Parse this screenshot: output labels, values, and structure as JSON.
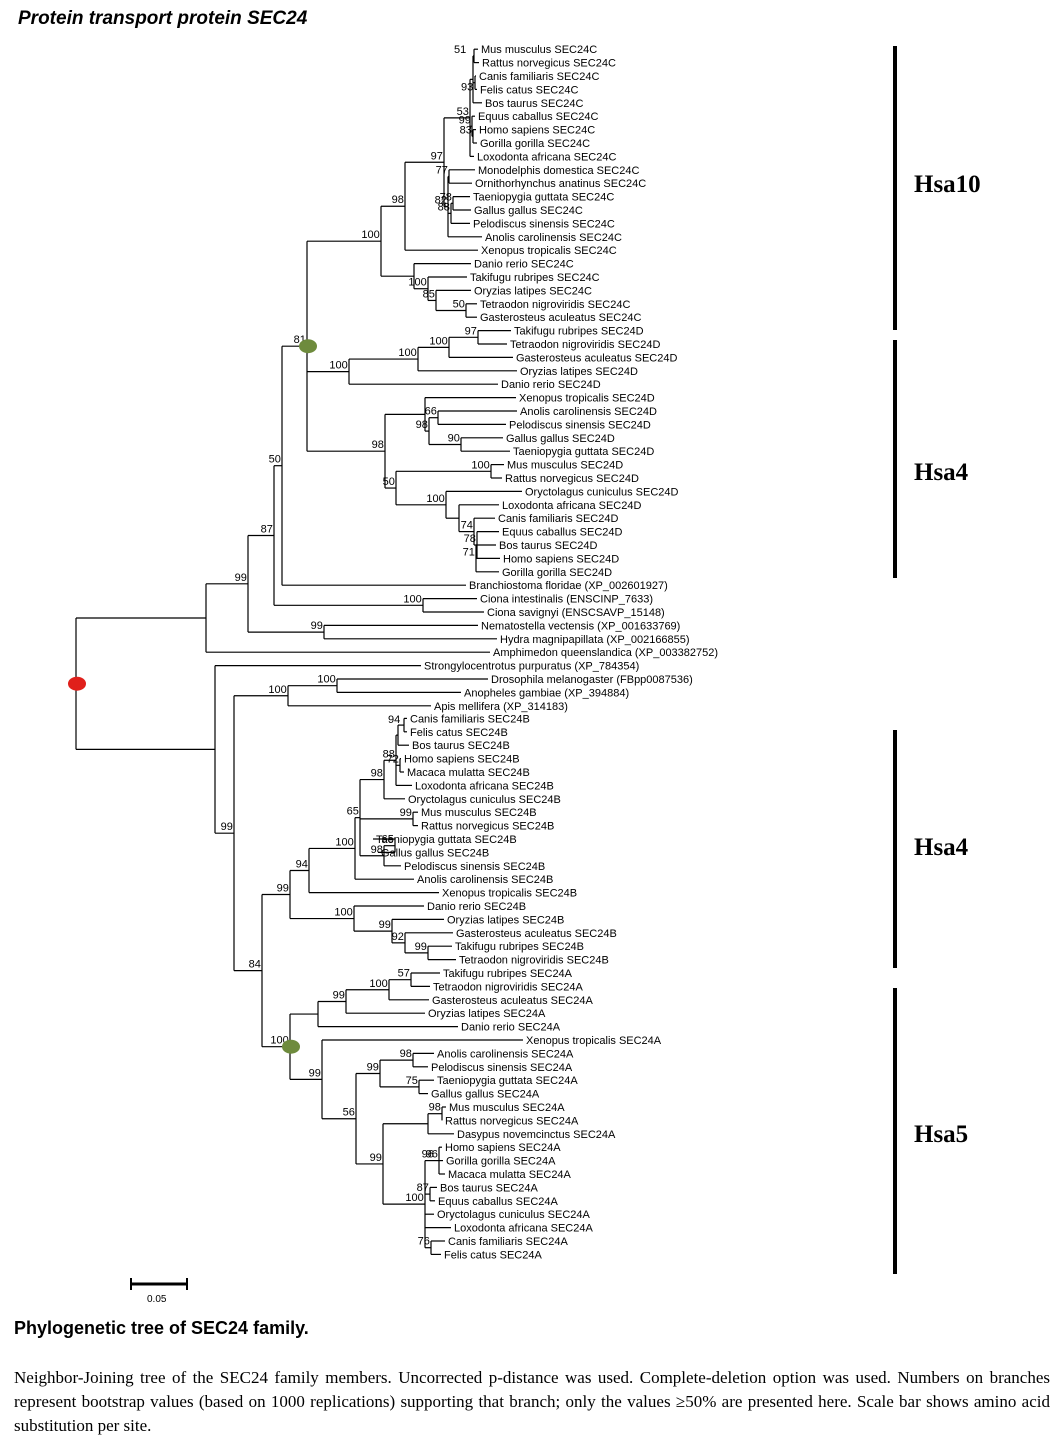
{
  "title": "Protein transport  protein  SEC24",
  "tree": {
    "taxa": [
      "Mus musculus SEC24C",
      "Rattus norvegicus SEC24C",
      "Canis familiaris SEC24C",
      "Felis catus SEC24C",
      "Bos taurus SEC24C",
      "Equus caballus SEC24C",
      "Homo sapiens SEC24C",
      "Gorilla gorilla SEC24C",
      "Loxodonta africana SEC24C",
      "Monodelphis domestica SEC24C",
      "Ornithorhynchus anatinus SEC24C",
      "Taeniopygia guttata SEC24C",
      "Gallus gallus SEC24C",
      "Pelodiscus sinensis SEC24C",
      "Anolis carolinensis SEC24C",
      "Xenopus tropicalis SEC24C",
      "Danio rerio SEC24C",
      "Takifugu rubripes SEC24C",
      "Oryzias latipes SEC24C",
      "Tetraodon nigroviridis SEC24C",
      "Gasterosteus aculeatus SEC24C",
      "Takifugu rubripes SEC24D",
      "Tetraodon nigroviridis SEC24D",
      "Gasterosteus aculeatus SEC24D",
      "Oryzias latipes SEC24D",
      "Danio rerio SEC24D",
      "Xenopus tropicalis SEC24D",
      "Anolis carolinensis SEC24D",
      "Pelodiscus sinensis SEC24D",
      "Gallus gallus SEC24D",
      "Taeniopygia guttata SEC24D",
      "Mus musculus SEC24D",
      "Rattus norvegicus SEC24D",
      "Oryctolagus cuniculus SEC24D",
      "Loxodonta africana SEC24D",
      "Canis familiaris SEC24D",
      "Equus caballus SEC24D",
      "Bos taurus SEC24D",
      "Homo sapiens SEC24D",
      "Gorilla gorilla SEC24D",
      "Branchiostoma floridae (XP_002601927)",
      "Ciona intestinalis (ENSCINP_7633)",
      "Ciona savignyi (ENSCSAVP_15148)",
      "Nematostella vectensis (XP_001633769)",
      "Hydra magnipapillata (XP_002166855)",
      "Amphimedon queenslandica (XP_003382752)",
      "Strongylocentrotus purpuratus (XP_784354)",
      "Drosophila melanogaster (FBpp0087536)",
      "Anopheles gambiae (XP_394884)",
      "Apis mellifera (XP_314183)",
      "Canis familiaris SEC24B",
      "Felis catus SEC24B",
      "Bos taurus SEC24B",
      "Homo sapiens SEC24B",
      "Macaca mulatta SEC24B",
      "Loxodonta africana SEC24B",
      "Oryctolagus cuniculus SEC24B",
      "Mus musculus SEC24B",
      "Rattus norvegicus SEC24B",
      "Taeniopygia guttata SEC24B",
      "Gallus gallus SEC24B",
      "Pelodiscus sinensis SEC24B",
      "Anolis carolinensis SEC24B",
      "Xenopus tropicalis SEC24B",
      "Danio rerio SEC24B",
      "Oryzias latipes SEC24B",
      "Gasterosteus aculeatus SEC24B",
      "Takifugu rubripes SEC24B",
      "Tetraodon nigroviridis SEC24B",
      "Takifugu rubripes SEC24A",
      "Tetraodon nigroviridis SEC24A",
      "Gasterosteus aculeatus SEC24A",
      "Oryzias latipes SEC24A",
      "Danio rerio SEC24A",
      "Xenopus tropicalis SEC24A",
      "Anolis carolinensis SEC24A",
      "Pelodiscus sinensis SEC24A",
      "Taeniopygia guttata SEC24A",
      "Gallus gallus SEC24A",
      "Mus musculus SEC24A",
      "Rattus norvegicus SEC24A",
      "Dasypus novemcinctus SEC24A",
      "Homo sapiens SEC24A",
      "Gorilla gorilla SEC24A",
      "Macaca mulatta SEC24A",
      "Bos taurus SEC24A",
      "Equus caballus SEC24A",
      "Oryctolagus cuniculus SEC24A",
      "Loxodonta africana SEC24A",
      "Canis familiaris SEC24A",
      "Felis catus SEC24A"
    ],
    "bootstrap": [
      "51",
      "93",
      "53",
      "99",
      "83",
      "97",
      "82",
      "77",
      "78",
      "88",
      "96",
      "98",
      "100",
      "100",
      "85",
      "50",
      "81",
      "97",
      "100",
      "100",
      "100",
      "66",
      "98",
      "90",
      "98",
      "100",
      "50",
      "100",
      "74",
      "78",
      "71",
      "99",
      "50",
      "87",
      "99",
      "100",
      "99",
      "99",
      "100",
      "100",
      "94",
      "66",
      "72",
      "88",
      "98",
      "65",
      "99",
      "65",
      "98",
      "99",
      "100",
      "94",
      "100",
      "99",
      "92",
      "99",
      "100",
      "57",
      "100",
      "99",
      "99",
      "99",
      "98",
      "56",
      "75",
      "99",
      "98",
      "100",
      "96",
      "96",
      "87",
      "69",
      "76",
      "84"
    ],
    "markers": {
      "duplication_color": "#6e8b3d",
      "root_color": "#e0201b"
    },
    "clades": [
      "Hsa10",
      "Hsa4",
      "Hsa4",
      "Hsa5"
    ],
    "scale_label": "0.05"
  },
  "caption": {
    "title": "Phylogenetic tree of  SEC24 family.",
    "text": "Neighbor-Joining tree of the  SEC24 family members. Uncorrected p-distance was used. Complete-deletion option was used. Numbers on branches represent bootstrap values (based on 1000 replications) supporting that branch; only the values ≥50% are presented here. Scale bar shows amino acid substitution per site."
  }
}
